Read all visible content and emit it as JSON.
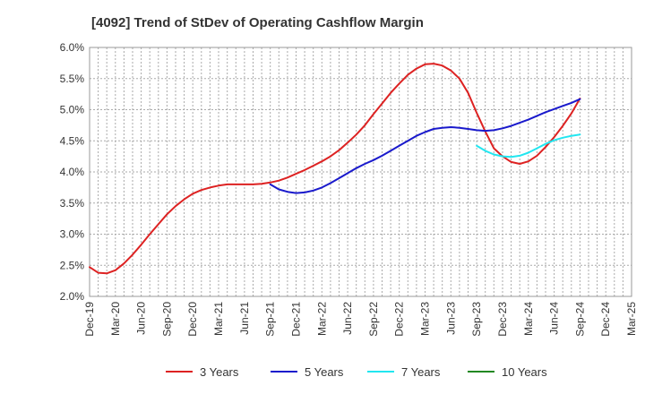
{
  "chart_data": {
    "type": "line",
    "title": "[4092]  Trend of StDev of Operating Cashflow Margin",
    "xlabel": "",
    "ylabel": "",
    "ylim": [
      2.0,
      6.0
    ],
    "y_ticks": [
      2.0,
      2.5,
      3.0,
      3.5,
      4.0,
      4.5,
      5.0,
      5.5,
      6.0
    ],
    "y_tick_labels": [
      "2.0%",
      "2.5%",
      "3.0%",
      "3.5%",
      "4.0%",
      "4.5%",
      "5.0%",
      "5.5%",
      "6.0%"
    ],
    "x_range": [
      "2019-12",
      "2025-03"
    ],
    "x_tick_labels": [
      "Dec-19",
      "Mar-20",
      "Jun-20",
      "Sep-20",
      "Dec-20",
      "Mar-21",
      "Jun-21",
      "Sep-21",
      "Dec-21",
      "Mar-22",
      "Jun-22",
      "Sep-22",
      "Dec-22",
      "Mar-23",
      "Jun-23",
      "Sep-23",
      "Dec-23",
      "Mar-24",
      "Jun-24",
      "Sep-24",
      "Dec-24",
      "Mar-25"
    ],
    "grid": true,
    "legend_position": "bottom",
    "series": [
      {
        "name": "3 Years",
        "color": "#dd2222",
        "points": [
          [
            "2019-12",
            2.47
          ],
          [
            "2020-01",
            2.38
          ],
          [
            "2020-02",
            2.37
          ],
          [
            "2020-03",
            2.42
          ],
          [
            "2020-04",
            2.53
          ],
          [
            "2020-05",
            2.67
          ],
          [
            "2020-06",
            2.83
          ],
          [
            "2020-07",
            3.0
          ],
          [
            "2020-08",
            3.16
          ],
          [
            "2020-09",
            3.32
          ],
          [
            "2020-10",
            3.45
          ],
          [
            "2020-11",
            3.56
          ],
          [
            "2020-12",
            3.65
          ],
          [
            "2021-01",
            3.71
          ],
          [
            "2021-02",
            3.75
          ],
          [
            "2021-03",
            3.78
          ],
          [
            "2021-04",
            3.8
          ],
          [
            "2021-05",
            3.8
          ],
          [
            "2021-06",
            3.8
          ],
          [
            "2021-07",
            3.8
          ],
          [
            "2021-08",
            3.81
          ],
          [
            "2021-09",
            3.83
          ],
          [
            "2021-10",
            3.86
          ],
          [
            "2021-11",
            3.91
          ],
          [
            "2021-12",
            3.97
          ],
          [
            "2022-01",
            4.03
          ],
          [
            "2022-02",
            4.1
          ],
          [
            "2022-03",
            4.17
          ],
          [
            "2022-04",
            4.25
          ],
          [
            "2022-05",
            4.35
          ],
          [
            "2022-06",
            4.47
          ],
          [
            "2022-07",
            4.6
          ],
          [
            "2022-08",
            4.75
          ],
          [
            "2022-09",
            4.93
          ],
          [
            "2022-10",
            5.1
          ],
          [
            "2022-11",
            5.27
          ],
          [
            "2022-12",
            5.42
          ],
          [
            "2023-01",
            5.56
          ],
          [
            "2023-02",
            5.66
          ],
          [
            "2023-03",
            5.73
          ],
          [
            "2023-04",
            5.74
          ],
          [
            "2023-05",
            5.71
          ],
          [
            "2023-06",
            5.63
          ],
          [
            "2023-07",
            5.5
          ],
          [
            "2023-08",
            5.27
          ],
          [
            "2023-09",
            4.95
          ],
          [
            "2023-10",
            4.65
          ],
          [
            "2023-11",
            4.38
          ],
          [
            "2023-12",
            4.25
          ],
          [
            "2024-01",
            4.16
          ],
          [
            "2024-02",
            4.13
          ],
          [
            "2024-03",
            4.17
          ],
          [
            "2024-04",
            4.26
          ],
          [
            "2024-05",
            4.4
          ],
          [
            "2024-06",
            4.56
          ],
          [
            "2024-07",
            4.74
          ],
          [
            "2024-08",
            4.94
          ],
          [
            "2024-09",
            5.18
          ]
        ]
      },
      {
        "name": "5 Years",
        "color": "#1a1acc",
        "points": [
          [
            "2021-09",
            3.8
          ],
          [
            "2021-10",
            3.72
          ],
          [
            "2021-11",
            3.68
          ],
          [
            "2021-12",
            3.66
          ],
          [
            "2022-01",
            3.67
          ],
          [
            "2022-02",
            3.7
          ],
          [
            "2022-03",
            3.75
          ],
          [
            "2022-04",
            3.82
          ],
          [
            "2022-05",
            3.9
          ],
          [
            "2022-06",
            3.98
          ],
          [
            "2022-07",
            4.06
          ],
          [
            "2022-08",
            4.13
          ],
          [
            "2022-09",
            4.19
          ],
          [
            "2022-10",
            4.26
          ],
          [
            "2022-11",
            4.34
          ],
          [
            "2022-12",
            4.42
          ],
          [
            "2023-01",
            4.5
          ],
          [
            "2023-02",
            4.58
          ],
          [
            "2023-03",
            4.64
          ],
          [
            "2023-04",
            4.69
          ],
          [
            "2023-05",
            4.71
          ],
          [
            "2023-06",
            4.72
          ],
          [
            "2023-07",
            4.71
          ],
          [
            "2023-08",
            4.69
          ],
          [
            "2023-09",
            4.67
          ],
          [
            "2023-10",
            4.66
          ],
          [
            "2023-11",
            4.67
          ],
          [
            "2023-12",
            4.7
          ],
          [
            "2024-01",
            4.74
          ],
          [
            "2024-02",
            4.79
          ],
          [
            "2024-03",
            4.84
          ],
          [
            "2024-04",
            4.9
          ],
          [
            "2024-05",
            4.96
          ],
          [
            "2024-06",
            5.01
          ],
          [
            "2024-07",
            5.06
          ],
          [
            "2024-08",
            5.11
          ],
          [
            "2024-09",
            5.17
          ]
        ]
      },
      {
        "name": "7 Years",
        "color": "#22e6f0",
        "points": [
          [
            "2023-09",
            4.42
          ],
          [
            "2023-10",
            4.34
          ],
          [
            "2023-11",
            4.28
          ],
          [
            "2023-12",
            4.25
          ],
          [
            "2024-01",
            4.24
          ],
          [
            "2024-02",
            4.26
          ],
          [
            "2024-03",
            4.31
          ],
          [
            "2024-04",
            4.38
          ],
          [
            "2024-05",
            4.45
          ],
          [
            "2024-06",
            4.51
          ],
          [
            "2024-07",
            4.55
          ],
          [
            "2024-08",
            4.58
          ],
          [
            "2024-09",
            4.6
          ]
        ]
      },
      {
        "name": "10 Years",
        "color": "#228822",
        "points": []
      }
    ]
  }
}
